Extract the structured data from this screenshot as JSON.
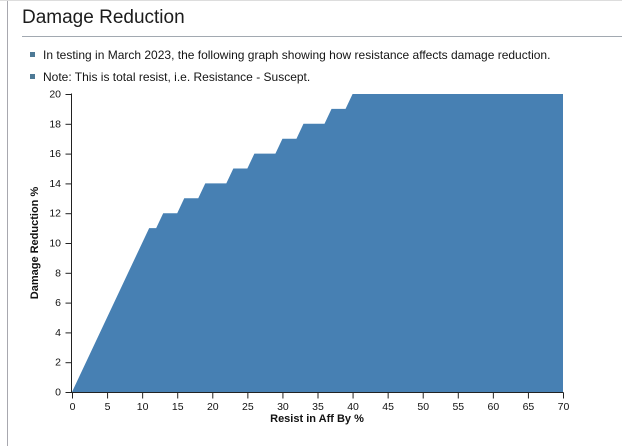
{
  "page": {
    "title": "Damage Reduction",
    "bullets": [
      "In testing in March 2023, the following graph showing how resistance affects damage reduction.",
      "Note: This is total resist, i.e. Resistance - Suscept."
    ]
  },
  "colors": {
    "area_fill": "#4780b3",
    "bullet_square": "#4e7a96",
    "heading_rule": "#a2a9b1",
    "axis": "#222222",
    "left_border": "#a8a8af",
    "top_border": "#dddddd"
  },
  "chart_data": {
    "type": "area",
    "title": "",
    "xlabel": "Resist in Aff By %",
    "ylabel": "Damage Reduction %",
    "xlim": [
      0,
      70
    ],
    "ylim": [
      0,
      20
    ],
    "x_ticks": [
      0,
      5,
      10,
      15,
      20,
      25,
      30,
      35,
      40,
      45,
      50,
      55,
      60,
      65,
      70
    ],
    "y_ticks": [
      0,
      2,
      4,
      6,
      8,
      10,
      12,
      14,
      16,
      18,
      20
    ],
    "grid": false,
    "legend": "none",
    "series_name": "Damage Reduction %",
    "points": [
      [
        0,
        0
      ],
      [
        11,
        11
      ],
      [
        12,
        11
      ],
      [
        13,
        12
      ],
      [
        15,
        12
      ],
      [
        16,
        13
      ],
      [
        18,
        13
      ],
      [
        19,
        14
      ],
      [
        22,
        14
      ],
      [
        23,
        15
      ],
      [
        25,
        15
      ],
      [
        26,
        16
      ],
      [
        29,
        16
      ],
      [
        30,
        17
      ],
      [
        32,
        17
      ],
      [
        33,
        18
      ],
      [
        36,
        18
      ],
      [
        37,
        19
      ],
      [
        39,
        19
      ],
      [
        40,
        20
      ],
      [
        70,
        20
      ]
    ]
  }
}
